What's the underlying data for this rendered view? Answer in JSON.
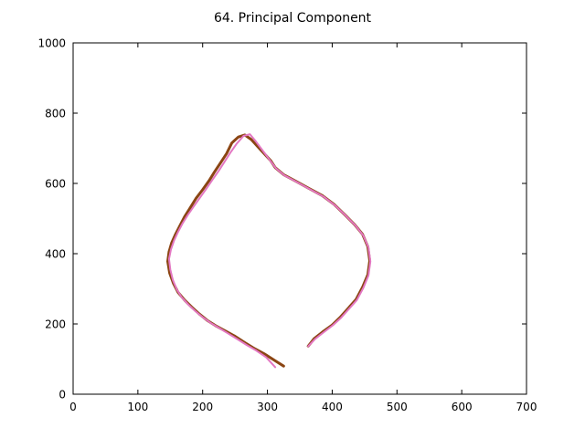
{
  "chart_data": {
    "type": "line",
    "title": "64. Principal Component",
    "xlabel": "",
    "ylabel": "",
    "xlim": [
      0,
      700
    ],
    "ylim": [
      0,
      1000
    ],
    "xticks": [
      0,
      100,
      200,
      300,
      400,
      500,
      600,
      700
    ],
    "yticks": [
      0,
      200,
      400,
      600,
      800,
      1000
    ],
    "grid": false,
    "series": [
      {
        "color": "#8b4513",
        "x": [
          363,
          372,
          385,
          400,
          413,
          425,
          437,
          447,
          455,
          458,
          455,
          447,
          435,
          420,
          403,
          385,
          365,
          345,
          325,
          312,
          305,
          295,
          285,
          275,
          265,
          255,
          245,
          237,
          228,
          218,
          210,
          200,
          190,
          180,
          172,
          165,
          158,
          152,
          148,
          146,
          149,
          155,
          162,
          172,
          183,
          195,
          207,
          220,
          235,
          250,
          264,
          278,
          295,
          312,
          325
        ],
        "y": [
          137,
          158,
          177,
          197,
          220,
          245,
          270,
          305,
          340,
          380,
          420,
          455,
          482,
          510,
          540,
          565,
          585,
          605,
          625,
          645,
          665,
          685,
          705,
          725,
          738,
          732,
          715,
          685,
          660,
          632,
          608,
          582,
          558,
          528,
          505,
          480,
          455,
          430,
          405,
          378,
          345,
          315,
          290,
          268,
          248,
          228,
          210,
          195,
          180,
          165,
          148,
          132,
          115,
          95,
          80
        ]
      },
      {
        "color": "#e377c2",
        "x": [
          363,
          373,
          386,
          401,
          414,
          426,
          438,
          448,
          456,
          459,
          456,
          448,
          436,
          421,
          404,
          386,
          366,
          346,
          326,
          313,
          303,
          292,
          282,
          273,
          263,
          252,
          243,
          234,
          225,
          215,
          206,
          196,
          186,
          177,
          169,
          162,
          156,
          151,
          148,
          150,
          154,
          160,
          168,
          178,
          189,
          201,
          213,
          226,
          240,
          254,
          268,
          283,
          298,
          312
        ],
        "y": [
          136,
          156,
          175,
          196,
          218,
          243,
          268,
          302,
          338,
          378,
          418,
          452,
          480,
          508,
          538,
          563,
          583,
          603,
          623,
          643,
          668,
          695,
          720,
          740,
          735,
          712,
          688,
          662,
          636,
          610,
          586,
          560,
          534,
          510,
          486,
          462,
          438,
          412,
          385,
          355,
          325,
          298,
          275,
          255,
          236,
          218,
          202,
          188,
          172,
          156,
          140,
          124,
          105,
          77
        ]
      }
    ]
  }
}
